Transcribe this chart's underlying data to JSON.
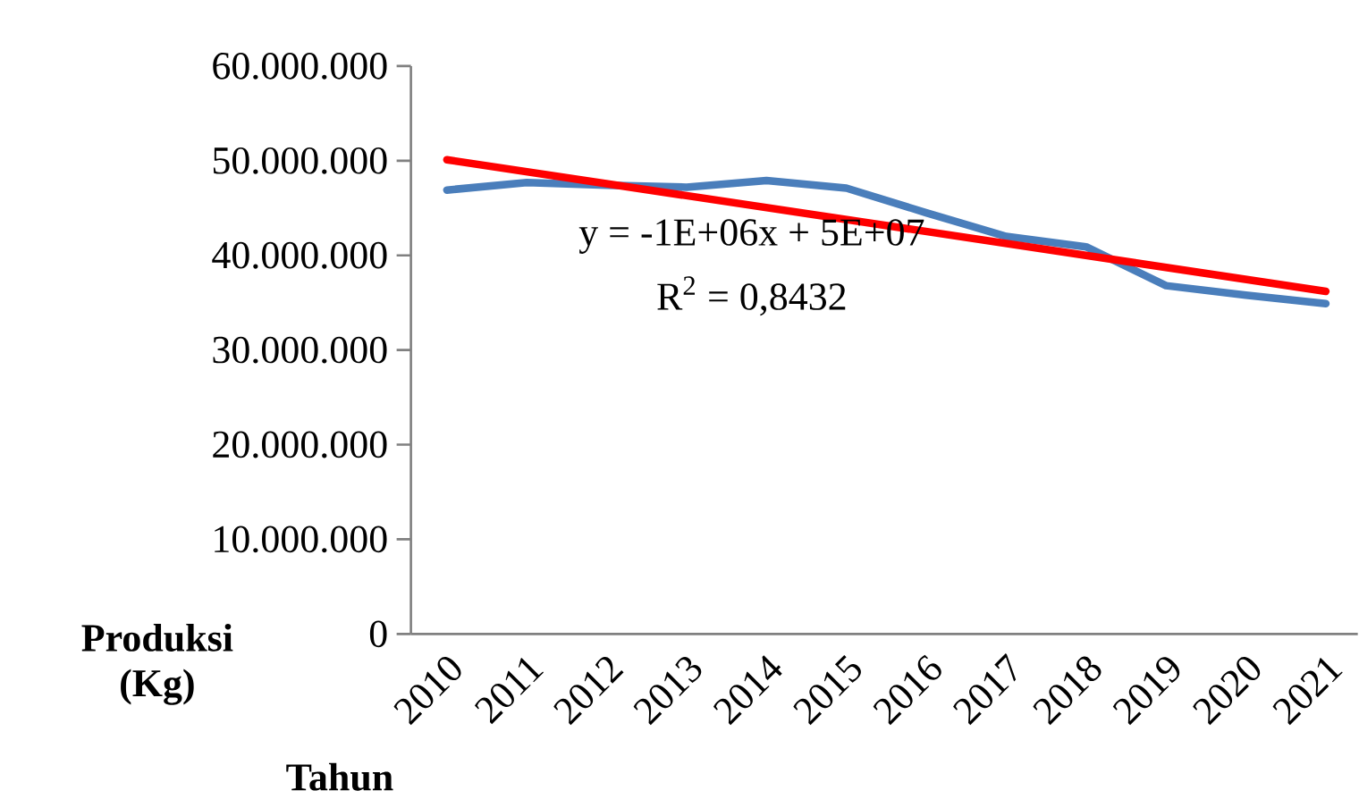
{
  "chart_data": {
    "type": "line",
    "xlabel": "Tahun",
    "ylabel": "Produksi (Kg)",
    "x": [
      2010,
      2011,
      2012,
      2013,
      2014,
      2015,
      2016,
      2017,
      2018,
      2019,
      2020,
      2021
    ],
    "series": [
      {
        "color": "#4a7ebb",
        "values": [
          46900000,
          47700000,
          47400000,
          47200000,
          47900000,
          47100000,
          44500000,
          42000000,
          40900000,
          36800000,
          35800000,
          34900000
        ]
      },
      {
        "type": "line",
        "color": "#ff0000",
        "x": [
          2010,
          2021
        ],
        "values": [
          50100000,
          36200000
        ]
      }
    ],
    "xlim": [
      2009.55,
      2021.4
    ],
    "xticks": [
      2010,
      2011,
      2012,
      2013,
      2014,
      2015,
      2016,
      2017,
      2018,
      2019,
      2020,
      2021
    ],
    "ylim": [
      0,
      60000000
    ],
    "yticks": [
      {
        "value": 0,
        "label": "0"
      },
      {
        "value": 10000000,
        "label": "10.000.000"
      },
      {
        "value": 20000000,
        "label": "20.000.000"
      },
      {
        "value": 30000000,
        "label": "30.000.000"
      },
      {
        "value": 40000000,
        "label": "40.000.000"
      },
      {
        "value": 50000000,
        "label": "50.000.000"
      },
      {
        "value": 60000000,
        "label": "60.000.000"
      }
    ],
    "annotations": [
      "y = -1E+06x + 5E+07",
      "R$^{2}$ = 0,8432"
    ],
    "grid": false,
    "legend": false,
    "marker": "none",
    "line_style": "solid"
  }
}
